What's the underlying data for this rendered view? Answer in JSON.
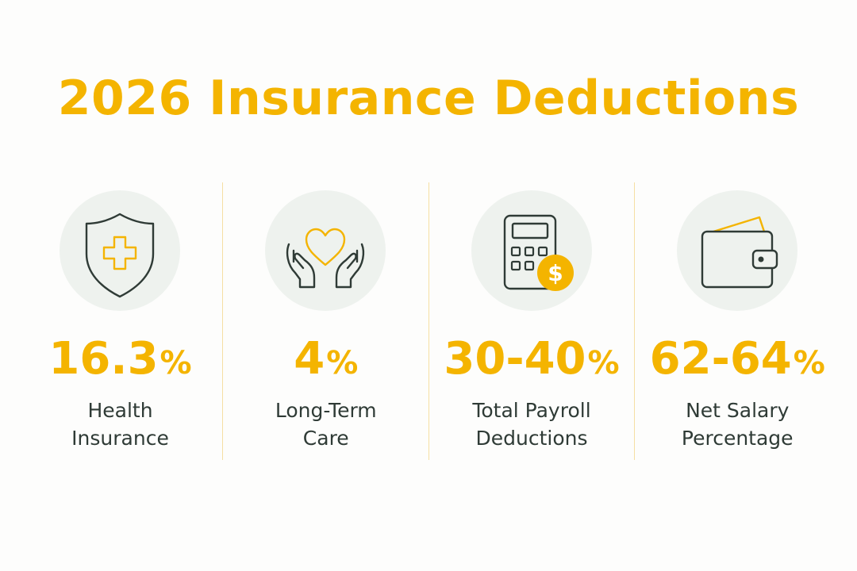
{
  "title": "2026 Insurance Deductions",
  "colors": {
    "accent": "#f4b400",
    "text": "#2f3b36",
    "icon_stroke": "#2f3b36",
    "icon_background": "#eef2ee",
    "divider": "#f6dfa3"
  },
  "stats": [
    {
      "icon": "shield-plus-icon",
      "value": "16.3",
      "unit": "%",
      "label_line1": "Health",
      "label_line2": "Insurance"
    },
    {
      "icon": "heart-hands-icon",
      "value": "4",
      "unit": "%",
      "label_line1": "Long-Term",
      "label_line2": "Care"
    },
    {
      "icon": "calculator-dollar-icon",
      "value": "30-40",
      "unit": "%",
      "label_line1": "Total Payroll",
      "label_line2": "Deductions"
    },
    {
      "icon": "wallet-icon",
      "value": "62-64",
      "unit": "%",
      "label_line1": "Net Salary",
      "label_line2": "Percentage"
    }
  ]
}
